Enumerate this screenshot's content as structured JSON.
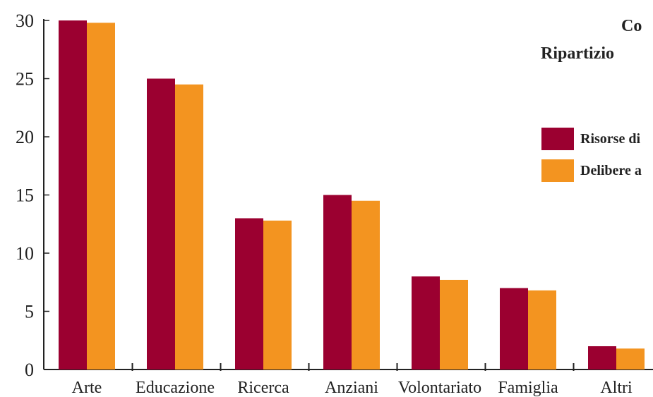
{
  "chart_data": {
    "type": "bar",
    "title": "Co",
    "subtitle": "Ripartizio",
    "categories": [
      "Arte",
      "Educazione",
      "Ricerca",
      "Anziani",
      "Volontariato",
      "Famiglia",
      "Altri"
    ],
    "series": [
      {
        "name": "Risorse di",
        "color": "#9b0030",
        "values": [
          30,
          25,
          13,
          15,
          8,
          7,
          2
        ]
      },
      {
        "name": "Delibere a",
        "color": "#f39420",
        "values": [
          29.8,
          24.5,
          12.8,
          14.5,
          7.7,
          6.8,
          1.8
        ]
      }
    ],
    "yticks": [
      "0",
      "5",
      "10",
      "15",
      "20",
      "25",
      "30"
    ],
    "ylim": [
      0,
      30
    ],
    "grid": false,
    "legend_position": "right"
  }
}
